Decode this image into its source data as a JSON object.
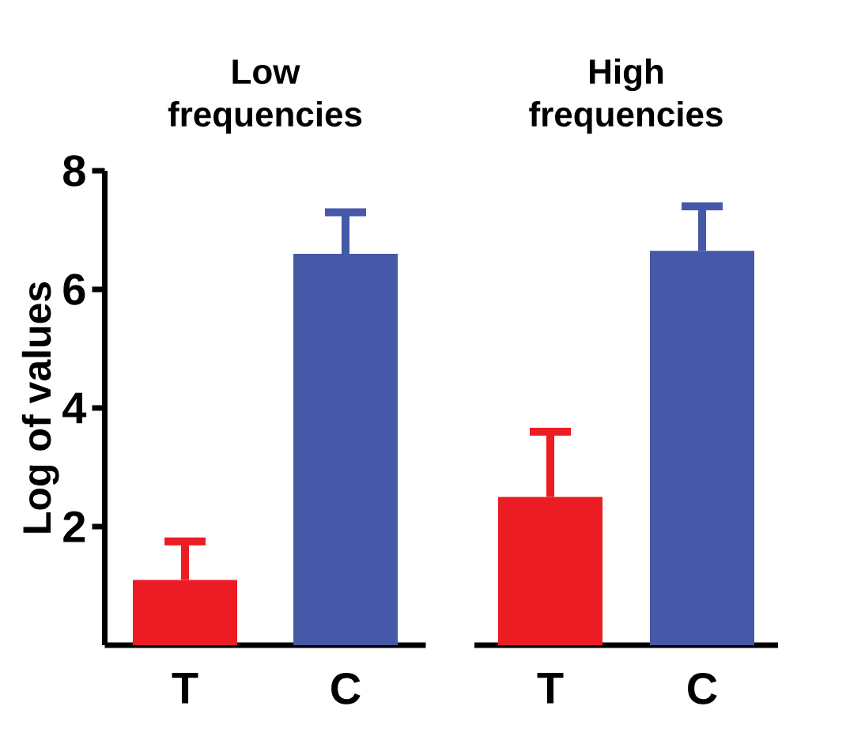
{
  "chart_data": [
    {
      "type": "bar",
      "title": "Low frequencies",
      "ylabel": "Log of values",
      "categories": [
        "T",
        "C"
      ],
      "values": [
        1.1,
        6.6
      ],
      "colors": [
        "#ec1c24",
        "#4659a8"
      ],
      "errors": [
        [
          1.1,
          1.75
        ],
        [
          6.6,
          7.3
        ]
      ],
      "ylim": [
        0,
        8
      ],
      "yticks": [
        2,
        4,
        6,
        8
      ]
    },
    {
      "type": "bar",
      "title": "High frequencies",
      "categories": [
        "T",
        "C"
      ],
      "values": [
        2.5,
        6.65
      ],
      "colors": [
        "#ec1c24",
        "#4659a8"
      ],
      "errors": [
        [
          2.5,
          3.6
        ],
        [
          6.65,
          7.4
        ]
      ],
      "ylim": [
        0,
        8
      ],
      "yticks": [
        2,
        4,
        6,
        8
      ],
      "tick_labels": "x"
    }
  ]
}
